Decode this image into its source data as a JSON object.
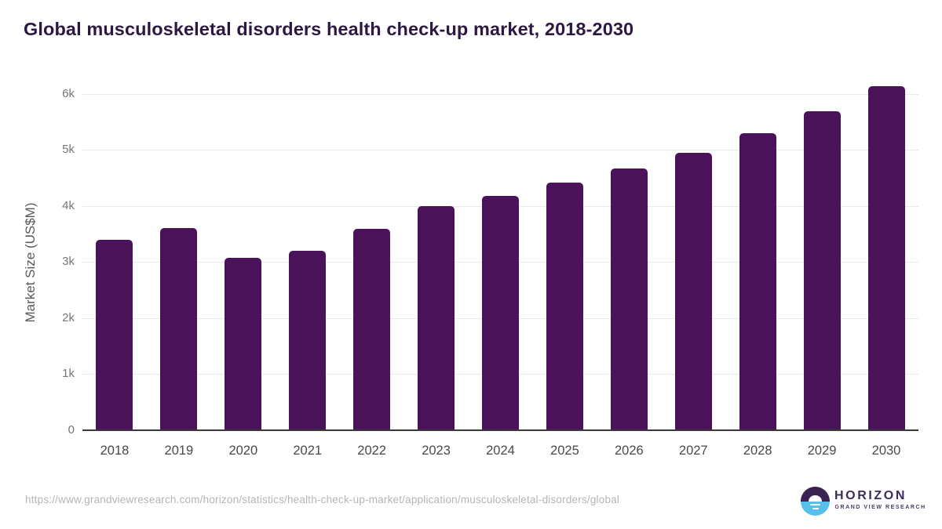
{
  "title": "Global musculoskeletal disorders health check-up market, 2018-2030",
  "chart_data": {
    "type": "bar",
    "title": "Global musculoskeletal disorders health check-up market, 2018-2030",
    "categories": [
      "2018",
      "2019",
      "2020",
      "2021",
      "2022",
      "2023",
      "2024",
      "2025",
      "2026",
      "2027",
      "2028",
      "2029",
      "2030"
    ],
    "values": [
      3400,
      3600,
      3080,
      3200,
      3590,
      4000,
      4180,
      4420,
      4670,
      4950,
      5300,
      5690,
      6140
    ],
    "xlabel": "",
    "ylabel": "Market Size (US$M)",
    "ylim": [
      0,
      6500
    ],
    "yticks": [
      {
        "value": 0,
        "label": "0"
      },
      {
        "value": 1000,
        "label": "1k"
      },
      {
        "value": 2000,
        "label": "2k"
      },
      {
        "value": 3000,
        "label": "3k"
      },
      {
        "value": 4000,
        "label": "4k"
      },
      {
        "value": 5000,
        "label": "5k"
      },
      {
        "value": 6000,
        "label": "6k"
      }
    ],
    "grid": "horizontal",
    "legend": "none",
    "bar_color": "#4a1259"
  },
  "footer": {
    "url": "https://www.grandviewresearch.com/horizon/statistics/health-check-up-market/application/musculoskeletal-disorders/global",
    "logo_title": "HORIZON",
    "logo_subtitle": "GRAND VIEW RESEARCH"
  },
  "colors": {
    "bar": "#4a1259",
    "title_text": "#2c1843",
    "axis_line": "#383838",
    "gridline": "#e9e9e9",
    "tick_label": "#767676",
    "category_label": "#484848",
    "url_text": "#b5b5b5",
    "logo_dark_half": "#3a2353",
    "logo_blue_half": "#56c0ea",
    "logo_text": "#3b2b5e"
  }
}
